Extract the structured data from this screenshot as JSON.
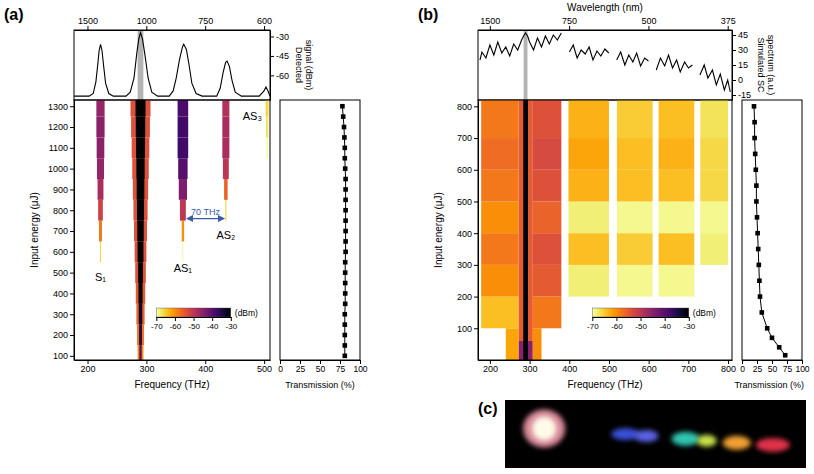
{
  "chart_data": [
    {
      "type": "line",
      "title": "(a)",
      "y_label": "Detected signal (dBm)",
      "x": [
        1694,
        1480,
        1430,
        1400,
        1380,
        1365,
        1350,
        1335,
        1320,
        1300,
        1270,
        1230,
        1130,
        1100,
        1075,
        1058,
        1045,
        1034,
        1022,
        1008,
        990,
        970,
        940,
        885,
        868,
        855,
        842,
        830,
        825,
        815,
        805,
        795,
        780,
        760,
        715,
        705,
        697,
        690,
        686,
        680,
        673,
        665,
        650,
        610,
        600,
        596,
        592,
        588
      ],
      "values": [
        -76,
        -76,
        -74,
        -65,
        -52,
        -41,
        -36,
        -41,
        -52,
        -66,
        -74,
        -76,
        -76,
        -73,
        -62,
        -44,
        -32,
        -27,
        -32,
        -44,
        -62,
        -73,
        -76,
        -76,
        -72,
        -62,
        -48,
        -38,
        -36,
        -40,
        -52,
        -66,
        -74,
        -76,
        -76,
        -70,
        -58,
        -50,
        -49,
        -53,
        -64,
        -73,
        -76,
        -76,
        -72,
        -69,
        -72,
        -76
      ],
      "xlim": [
        1694,
        588
      ],
      "xticks": [
        1500,
        1000,
        750,
        600
      ],
      "ylim": [
        -79,
        -25
      ],
      "yticks": [
        -30,
        -45,
        -60
      ],
      "shaded_band": [
        1052,
        1017
      ],
      "color": "#000000"
    },
    {
      "type": "heatmap",
      "x_label": "Frequency (THz)",
      "y_label": "Input energy (μJ)",
      "xlim": [
        177,
        510
      ],
      "xticks": [
        200,
        300,
        400,
        500
      ],
      "ylim": [
        80,
        1330
      ],
      "yticks": [
        100,
        200,
        300,
        400,
        500,
        600,
        700,
        800,
        900,
        1000,
        1100,
        1200,
        1300
      ],
      "cells": [
        [
          285,
          295,
          50,
          150,
          -60
        ],
        [
          284,
          296,
          150,
          250,
          -58
        ],
        [
          283,
          297,
          250,
          350,
          -56
        ],
        [
          282,
          298,
          350,
          450,
          -55
        ],
        [
          281,
          299,
          450,
          550,
          -54
        ],
        [
          280,
          300,
          550,
          650,
          -54
        ],
        [
          279,
          301,
          650,
          750,
          -54
        ],
        [
          278,
          302,
          750,
          850,
          -54
        ],
        [
          277,
          303,
          850,
          950,
          -54
        ],
        [
          276,
          304,
          950,
          1050,
          -54
        ],
        [
          275,
          305,
          1050,
          1150,
          -54
        ],
        [
          274,
          306,
          1150,
          1250,
          -54
        ],
        [
          273,
          307,
          1250,
          1350,
          -54
        ],
        [
          288,
          292,
          50,
          150,
          -40
        ],
        [
          287.5,
          292.5,
          150,
          250,
          -36
        ],
        [
          287,
          293,
          250,
          350,
          -33
        ],
        [
          286.5,
          293.5,
          350,
          450,
          -31
        ],
        [
          286,
          294,
          450,
          550,
          -30
        ],
        [
          285,
          295,
          550,
          650,
          -30
        ],
        [
          284.5,
          295.5,
          650,
          750,
          -30
        ],
        [
          284,
          296,
          750,
          850,
          -30
        ],
        [
          283.5,
          296.5,
          850,
          950,
          -30
        ],
        [
          283,
          297,
          950,
          1050,
          -30
        ],
        [
          282.5,
          297.5,
          1050,
          1150,
          -30
        ],
        [
          282,
          298,
          1150,
          1250,
          -30
        ],
        [
          281.5,
          298.5,
          1250,
          1350,
          -30
        ],
        [
          221,
          223,
          550,
          650,
          -66
        ],
        [
          219.5,
          224.5,
          650,
          750,
          -58
        ],
        [
          218,
          226,
          750,
          850,
          -52
        ],
        [
          217,
          227,
          850,
          950,
          -48
        ],
        [
          216,
          228,
          950,
          1050,
          -46
        ],
        [
          215.5,
          228.5,
          1050,
          1150,
          -45
        ],
        [
          215,
          229,
          1150,
          1250,
          -45
        ],
        [
          215,
          229,
          1250,
          1350,
          -46
        ],
        [
          361.5,
          362.5,
          550,
          650,
          -68
        ],
        [
          360,
          364,
          650,
          750,
          -60
        ],
        [
          357,
          367,
          750,
          850,
          -50
        ],
        [
          355,
          369,
          850,
          950,
          -44
        ],
        [
          354,
          370,
          950,
          1050,
          -40
        ],
        [
          353,
          371,
          1050,
          1150,
          -38
        ],
        [
          353,
          371,
          1150,
          1250,
          -38
        ],
        [
          353,
          371,
          1250,
          1350,
          -39
        ],
        [
          434,
          436,
          750,
          850,
          -66
        ],
        [
          432,
          438,
          850,
          950,
          -56
        ],
        [
          430,
          440,
          950,
          1050,
          -50
        ],
        [
          429,
          441,
          1050,
          1150,
          -48
        ],
        [
          429,
          441,
          1150,
          1250,
          -48
        ],
        [
          429,
          441,
          1250,
          1350,
          -49
        ],
        [
          504,
          506,
          1050,
          1150,
          -69
        ],
        [
          503,
          507,
          1150,
          1250,
          -67
        ],
        [
          502.5,
          507.5,
          1250,
          1350,
          -66
        ]
      ],
      "colorbar": {
        "range": [
          -70,
          -30
        ],
        "ticks": [
          -70,
          -60,
          -50,
          -40,
          -30
        ],
        "label": "(dBm)"
      },
      "annotations": [
        {
          "text": "S₁",
          "x": 222,
          "y": 480
        },
        {
          "text": "AS₁",
          "x": 362,
          "y": 520
        },
        {
          "text": "AS₂",
          "x": 435,
          "y": 680
        },
        {
          "text": "AS₃",
          "x": 480,
          "y": 1250
        },
        {
          "text": "70 THz",
          "x": [
            369,
            432
          ],
          "y": 760,
          "color": "#3a5ba8"
        }
      ]
    },
    {
      "type": "scatter",
      "x_label": "Transmission (%)",
      "x": [
        81,
        81,
        81,
        81,
        81,
        81.5,
        81.5,
        81.5,
        81.5,
        81.5,
        82,
        82,
        82,
        82,
        82,
        82,
        82,
        82,
        81.5,
        81,
        81,
        80.5,
        80,
        79,
        78
      ],
      "values": [
        100,
        150,
        200,
        250,
        300,
        350,
        400,
        450,
        500,
        550,
        600,
        650,
        700,
        750,
        800,
        850,
        900,
        950,
        1000,
        1050,
        1100,
        1150,
        1200,
        1250,
        1300
      ],
      "xlim": [
        0,
        100
      ],
      "xticks": [
        0,
        25,
        50,
        75,
        100
      ],
      "ylim": [
        80,
        1330
      ],
      "marker": "square",
      "line_style": "solid",
      "tick_labels": "x",
      "color": "#000000"
    },
    {
      "type": "line",
      "title": "(b)",
      "x_label": "Wavelength (nm)",
      "y_label": "Simulated SC spectrum (a.u.)",
      "x": [
        1713,
        1666,
        1578,
        1499,
        1428,
        1363,
        1303,
        1249,
        1199,
        1153,
        1110,
        1071,
        1052,
        1034,
        1016,
        999,
        967,
        937,
        908,
        882,
        857,
        833,
        810,
        789,
        775,
        749,
        731,
        714,
        697,
        681,
        666,
        652,
        638,
        625,
        612,
        600,
        590,
        577,
        566,
        555,
        545,
        535,
        526,
        517,
        508,
        500,
        493,
        484,
        476,
        468,
        461,
        454,
        447,
        441,
        434,
        428,
        422,
        418,
        411,
        405,
        400,
        394,
        389,
        384,
        379,
        375,
        372
      ],
      "values": [
        20,
        28,
        22,
        35,
        25,
        38,
        27,
        33,
        24,
        36,
        30,
        40,
        44,
        47,
        44,
        38,
        30,
        42,
        33,
        44,
        36,
        45,
        40,
        47,
        null,
        28,
        35,
        22,
        30,
        26,
        33,
        20,
        29,
        24,
        31,
        27,
        null,
        20,
        28,
        15,
        25,
        18,
        27,
        14,
        22,
        19,
        null,
        10,
        22,
        14,
        25,
        12,
        20,
        8,
        18,
        12,
        15,
        null,
        5,
        15,
        2,
        10,
        -5,
        6,
        -10,
        0,
        -12
      ],
      "xlim": [
        1763,
        370
      ],
      "xticks": [
        1500,
        750,
        500,
        375
      ],
      "ylim": [
        -20,
        50
      ],
      "yticks": [
        45,
        30,
        15,
        0,
        -15
      ],
      "shaded_band": [
        1052,
        1017
      ],
      "color": "#000000"
    },
    {
      "type": "heatmap",
      "x_label": "Frequency (THz)",
      "y_label": "Input energy (μJ)",
      "xlim": [
        170,
        810
      ],
      "xticks": [
        200,
        300,
        400,
        500,
        600,
        700,
        800
      ],
      "ylim": [
        0,
        820
      ],
      "yticks": [
        100,
        200,
        300,
        400,
        500,
        600,
        700,
        800
      ],
      "cells": [
        [
          272,
          308,
          0,
          60,
          -45
        ],
        [
          272,
          308,
          60,
          820,
          -55
        ],
        [
          284,
          296,
          0,
          820,
          -31
        ],
        [
          240,
          272,
          0,
          100,
          -62
        ],
        [
          178,
          272,
          100,
          200,
          -64
        ],
        [
          178,
          272,
          200,
          300,
          -60
        ],
        [
          178,
          272,
          300,
          400,
          -58
        ],
        [
          178,
          272,
          400,
          500,
          -60
        ],
        [
          178,
          272,
          500,
          600,
          -58
        ],
        [
          178,
          272,
          600,
          700,
          -57
        ],
        [
          178,
          272,
          700,
          820,
          -58
        ],
        [
          308,
          330,
          0,
          100,
          -60
        ],
        [
          308,
          380,
          100,
          200,
          -58
        ],
        [
          308,
          380,
          200,
          300,
          -55
        ],
        [
          308,
          380,
          300,
          400,
          -54
        ],
        [
          308,
          380,
          400,
          500,
          -56
        ],
        [
          308,
          380,
          500,
          600,
          -54
        ],
        [
          308,
          380,
          600,
          700,
          -53
        ],
        [
          308,
          380,
          700,
          820,
          -54
        ],
        [
          398,
          500,
          200,
          300,
          -68
        ],
        [
          398,
          500,
          300,
          400,
          -64
        ],
        [
          398,
          500,
          400,
          500,
          -68
        ],
        [
          398,
          500,
          500,
          600,
          -63
        ],
        [
          398,
          500,
          600,
          700,
          -62
        ],
        [
          398,
          500,
          700,
          820,
          -63
        ],
        [
          520,
          610,
          200,
          300,
          -69
        ],
        [
          520,
          610,
          300,
          400,
          -65
        ],
        [
          520,
          610,
          400,
          500,
          -69
        ],
        [
          520,
          610,
          500,
          600,
          -64
        ],
        [
          520,
          610,
          600,
          700,
          -64
        ],
        [
          520,
          610,
          700,
          820,
          -65
        ],
        [
          625,
          715,
          200,
          300,
          -69
        ],
        [
          625,
          715,
          300,
          400,
          -64
        ],
        [
          625,
          715,
          400,
          500,
          -69
        ],
        [
          625,
          715,
          500,
          600,
          -64
        ],
        [
          625,
          715,
          600,
          700,
          -63
        ],
        [
          625,
          715,
          700,
          820,
          -64
        ],
        [
          730,
          800,
          300,
          400,
          -68
        ],
        [
          730,
          800,
          400,
          500,
          -69
        ],
        [
          730,
          800,
          500,
          600,
          -66
        ],
        [
          730,
          800,
          600,
          700,
          -66
        ],
        [
          730,
          800,
          700,
          820,
          -67
        ]
      ],
      "colorbar": {
        "range": [
          -70,
          -30
        ],
        "ticks": [
          -70,
          -60,
          -50,
          -40,
          -30
        ],
        "label": "(dBm)"
      }
    },
    {
      "type": "scatter",
      "x_label": "Transmission (%)",
      "x": [
        72,
        62,
        50,
        42,
        33,
        30,
        29,
        28,
        27,
        26,
        25,
        24,
        24,
        23,
        22,
        21,
        21,
        20
      ],
      "values": [
        15,
        40,
        70,
        100,
        150,
        200,
        250,
        300,
        350,
        400,
        450,
        500,
        550,
        600,
        650,
        700,
        750,
        800
      ],
      "xlim": [
        0,
        100
      ],
      "xticks": [
        0,
        25,
        50,
        75,
        100
      ],
      "ylim": [
        0,
        820
      ],
      "marker": "square",
      "line_style": "solid",
      "tick_labels": "x",
      "color": "#000000"
    },
    {
      "type": "image",
      "title": "(c)"
    }
  ]
}
